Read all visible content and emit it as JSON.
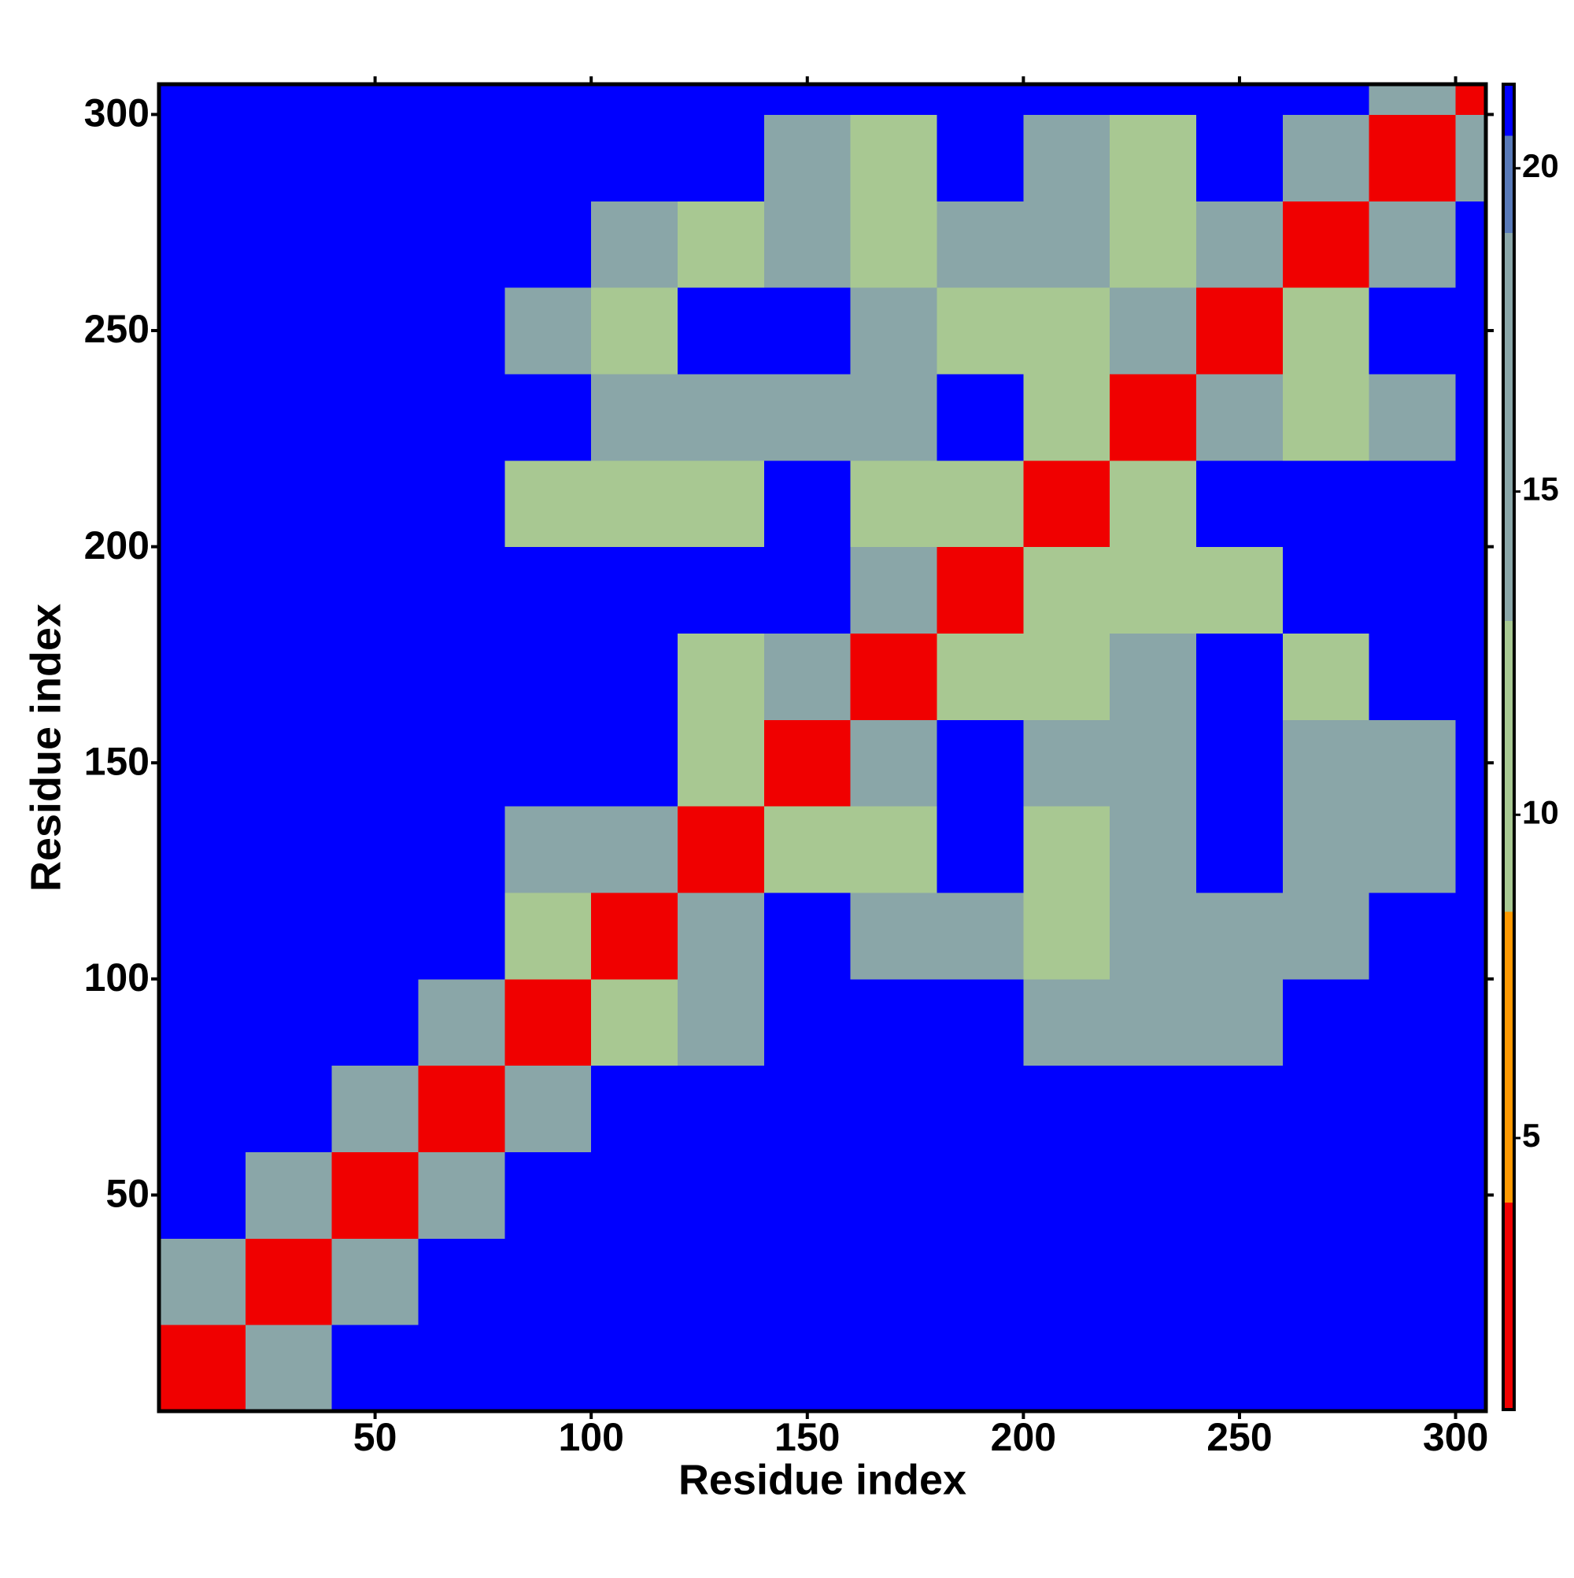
{
  "chart_data": {
    "type": "heatmap",
    "x_label": "Residue index",
    "y_label": "Residue index",
    "x_bins": [
      0,
      20,
      40,
      60,
      80,
      100,
      120,
      140,
      160,
      180,
      200,
      220,
      240,
      260,
      280,
      300,
      307
    ],
    "y_bins": [
      0,
      20,
      40,
      60,
      80,
      100,
      120,
      140,
      160,
      180,
      200,
      220,
      240,
      260,
      280,
      300,
      307
    ],
    "xlim": [
      0,
      307
    ],
    "ylim": [
      0,
      307
    ],
    "xticks": [
      50,
      100,
      150,
      200,
      250,
      300
    ],
    "yticks": [
      50,
      100,
      150,
      200,
      250,
      300
    ],
    "values": [
      [
        3,
        16,
        21,
        21,
        21,
        21,
        21,
        21,
        21,
        21,
        21,
        21,
        21,
        21,
        21,
        21
      ],
      [
        16,
        3,
        16,
        21,
        21,
        21,
        21,
        21,
        21,
        21,
        21,
        21,
        21,
        21,
        21,
        21
      ],
      [
        21,
        16,
        3,
        16,
        21,
        21,
        21,
        21,
        21,
        21,
        21,
        21,
        21,
        21,
        21,
        21
      ],
      [
        21,
        21,
        16,
        3,
        16,
        21,
        21,
        21,
        21,
        21,
        21,
        21,
        21,
        21,
        21,
        21
      ],
      [
        21,
        21,
        21,
        16,
        3,
        12,
        16,
        21,
        21,
        21,
        15,
        17,
        17,
        21,
        21,
        21
      ],
      [
        21,
        21,
        21,
        21,
        12,
        3,
        16,
        21,
        18,
        15,
        12,
        15,
        14,
        17,
        21,
        21
      ],
      [
        21,
        21,
        21,
        21,
        17,
        16,
        3,
        12,
        11,
        21,
        12,
        16,
        21,
        15,
        17,
        21
      ],
      [
        21,
        21,
        21,
        21,
        21,
        21,
        13,
        3,
        16,
        21,
        16,
        15,
        21,
        14,
        17,
        21
      ],
      [
        21,
        21,
        21,
        21,
        21,
        21,
        11,
        14,
        3,
        13,
        11,
        17,
        21,
        12,
        21,
        21
      ],
      [
        21,
        21,
        21,
        21,
        21,
        21,
        21,
        21,
        16,
        3,
        12,
        13,
        12,
        21,
        21,
        21
      ],
      [
        21,
        21,
        21,
        21,
        13,
        12,
        11,
        21,
        11,
        12,
        3,
        11,
        21,
        21,
        21,
        21
      ],
      [
        21,
        21,
        21,
        21,
        21,
        18,
        14,
        17,
        16,
        21,
        11,
        3,
        16,
        11,
        15,
        21
      ],
      [
        21,
        21,
        21,
        21,
        15,
        13,
        21,
        21,
        15,
        12,
        12,
        16,
        3,
        10,
        21,
        21
      ],
      [
        21,
        21,
        21,
        21,
        21,
        19,
        13,
        14,
        12,
        16,
        14,
        12,
        16,
        3,
        16,
        21
      ],
      [
        21,
        21,
        21,
        21,
        21,
        21,
        21,
        15,
        13,
        21,
        15,
        13,
        21,
        16,
        3,
        16
      ],
      [
        21,
        21,
        21,
        21,
        21,
        21,
        21,
        21,
        21,
        21,
        21,
        21,
        21,
        21,
        16,
        3
      ]
    ],
    "clim": [
      0.8,
      21.3
    ],
    "colorbar_ticks": [
      5,
      10,
      15,
      20
    ],
    "colormap": [
      {
        "value": 4,
        "color": "#f00000"
      },
      {
        "value": 8.5,
        "color": "#ff9900"
      },
      {
        "value": 13,
        "color": "#a8c892"
      },
      {
        "value": 19,
        "color": "#8aa6a8"
      },
      {
        "value": 20.5,
        "color": "#5879b8"
      },
      {
        "value": 21.3,
        "color": "#0000ff"
      }
    ]
  }
}
